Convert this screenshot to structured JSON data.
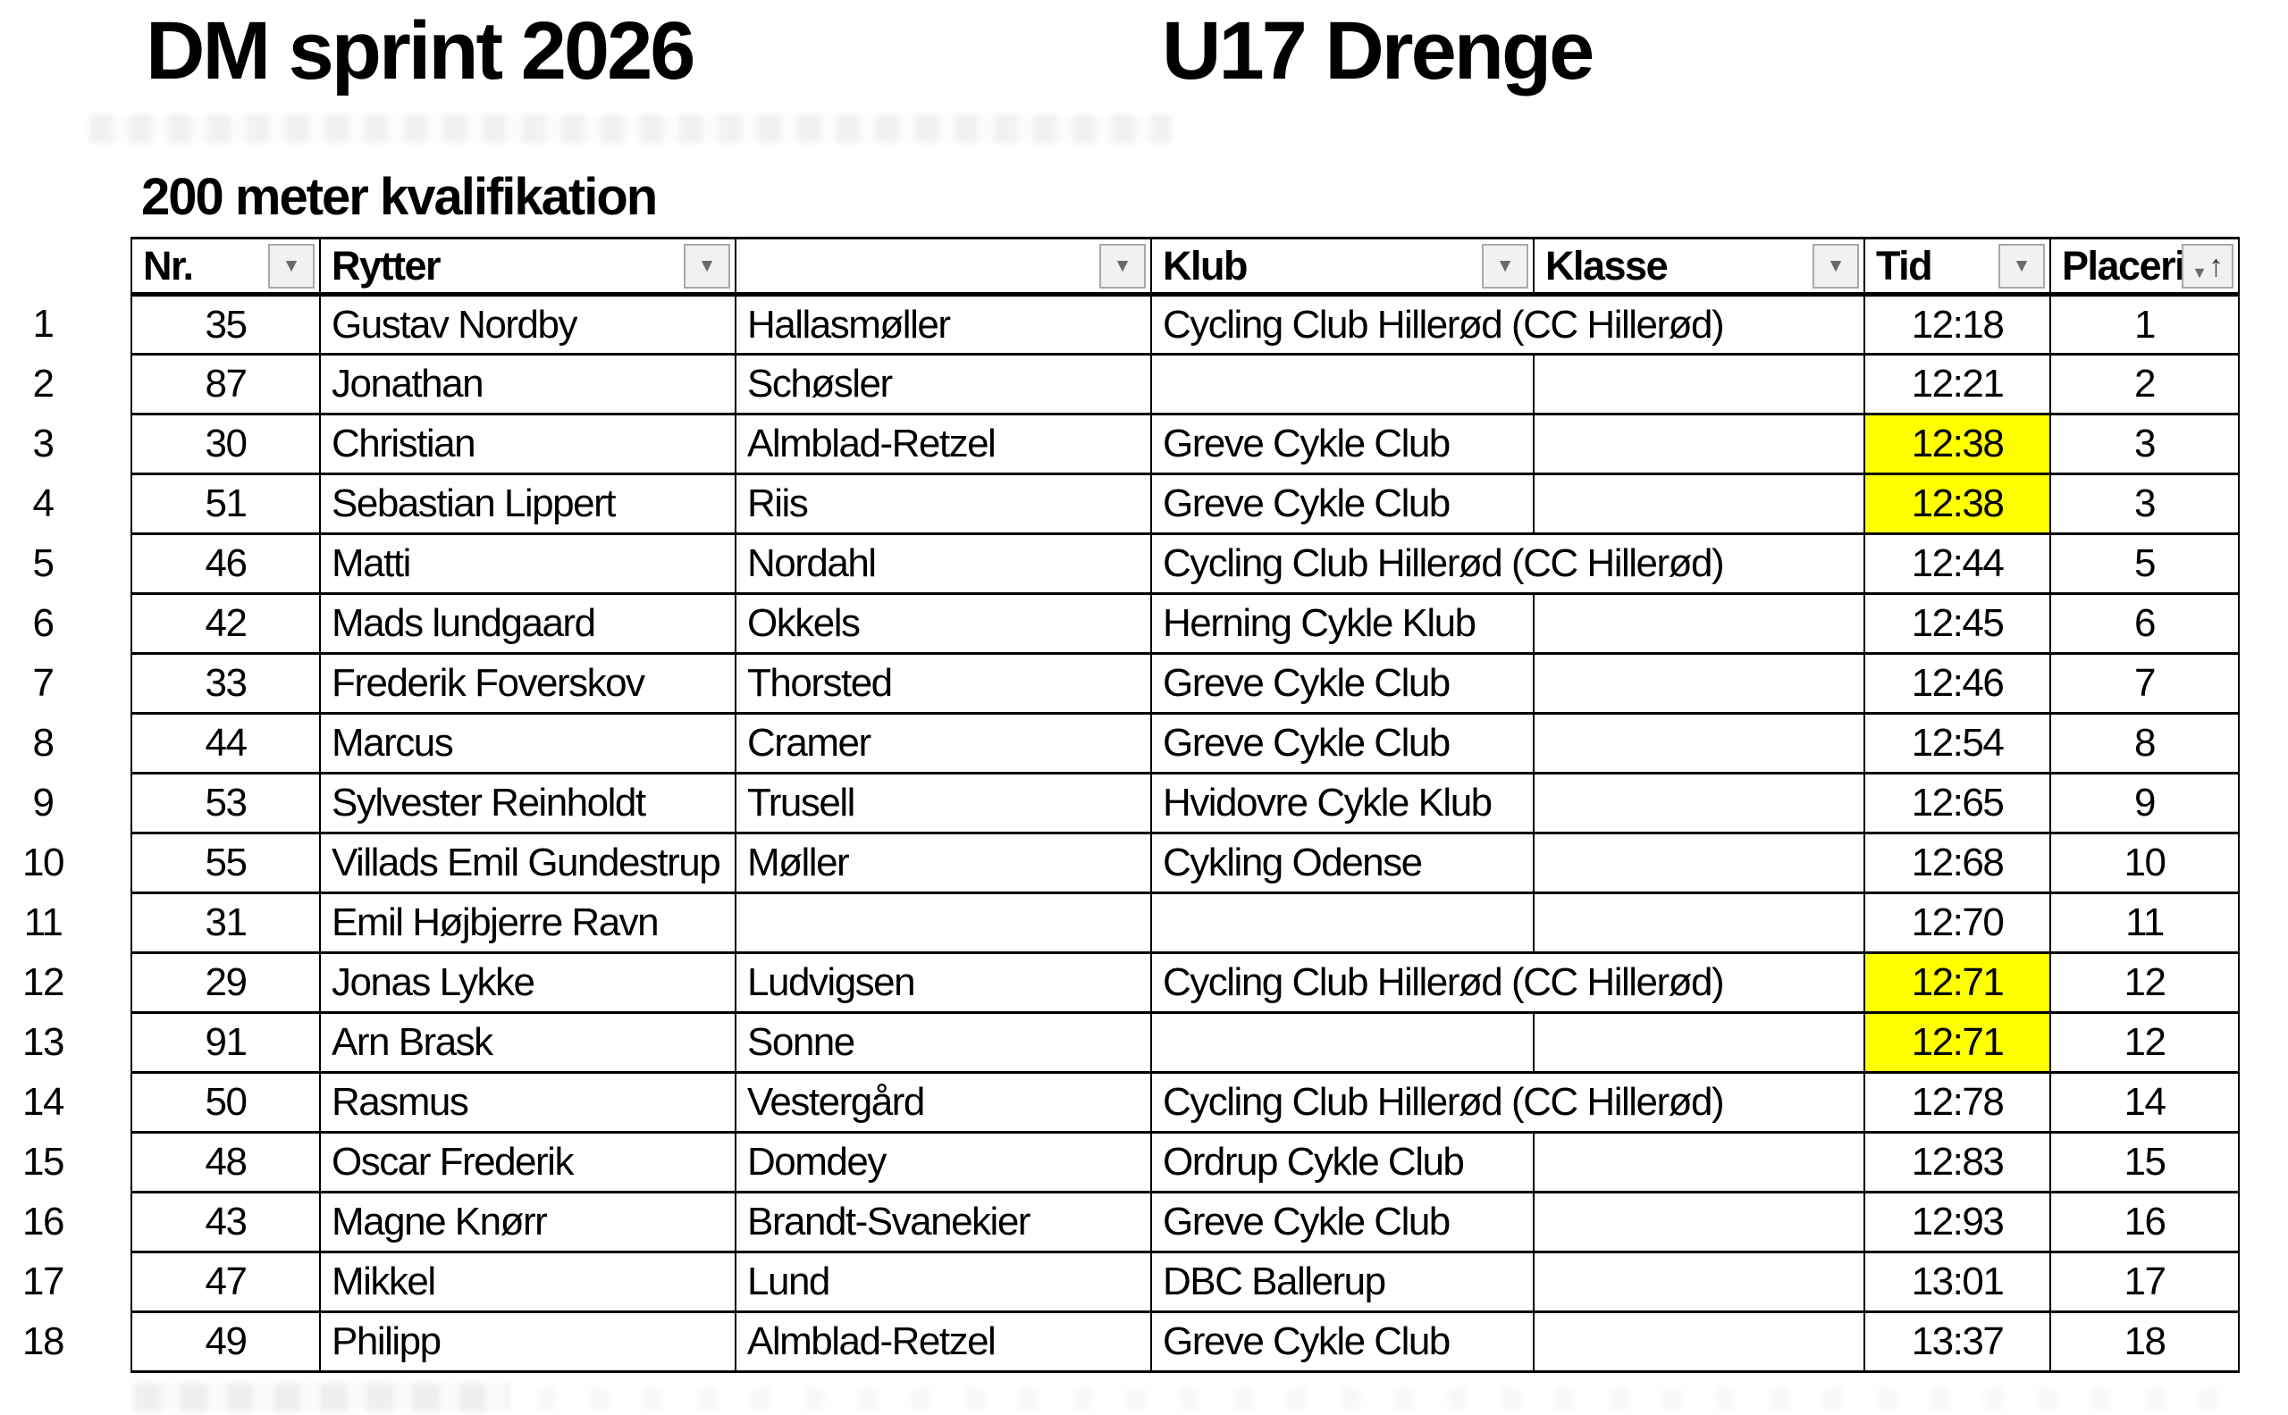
{
  "titles": {
    "event": "DM sprint 2026",
    "category": "U17 Drenge",
    "section": "200 meter kvalifikation"
  },
  "colors": {
    "highlight": "#ffff00"
  },
  "table": {
    "headers": {
      "nr": "Nr.",
      "rytter": "Rytter",
      "efternavn": "",
      "klub": "Klub",
      "klasse": "Klasse",
      "tid": "Tid",
      "placering": "Placering"
    },
    "icons": {
      "filter": "▼",
      "sort_ascending": "↑"
    },
    "sorted_column": "placering",
    "rows": [
      {
        "row": "1",
        "nr": "35",
        "fornavn": "Gustav Nordby",
        "efternavn": "Hallasmøller",
        "klub": "Cycling Club Hillerød (CC Hillerød)",
        "klasse": "",
        "tid": "12:18",
        "placering": "1",
        "tid_highlighted": false
      },
      {
        "row": "2",
        "nr": "87",
        "fornavn": "Jonathan",
        "efternavn": "Schøsler",
        "klub": "",
        "klasse": "",
        "tid": "12:21",
        "placering": "2",
        "tid_highlighted": false
      },
      {
        "row": "3",
        "nr": "30",
        "fornavn": "Christian",
        "efternavn": "Almblad-Retzel",
        "klub": "Greve Cykle Club",
        "klasse": "",
        "tid": "12:38",
        "placering": "3",
        "tid_highlighted": true
      },
      {
        "row": "4",
        "nr": "51",
        "fornavn": "Sebastian Lippert",
        "efternavn": "Riis",
        "klub": "Greve Cykle Club",
        "klasse": "",
        "tid": "12:38",
        "placering": "3",
        "tid_highlighted": true
      },
      {
        "row": "5",
        "nr": "46",
        "fornavn": "Matti",
        "efternavn": "Nordahl",
        "klub": "Cycling Club Hillerød (CC Hillerød)",
        "klasse": "",
        "tid": "12:44",
        "placering": "5",
        "tid_highlighted": false
      },
      {
        "row": "6",
        "nr": "42",
        "fornavn": "Mads lundgaard",
        "efternavn": "Okkels",
        "klub": "Herning Cykle Klub",
        "klasse": "",
        "tid": "12:45",
        "placering": "6",
        "tid_highlighted": false
      },
      {
        "row": "7",
        "nr": "33",
        "fornavn": "Frederik Foverskov",
        "efternavn": "Thorsted",
        "klub": "Greve Cykle Club",
        "klasse": "",
        "tid": "12:46",
        "placering": "7",
        "tid_highlighted": false
      },
      {
        "row": "8",
        "nr": "44",
        "fornavn": "Marcus",
        "efternavn": "Cramer",
        "klub": "Greve Cykle Club",
        "klasse": "",
        "tid": "12:54",
        "placering": "8",
        "tid_highlighted": false
      },
      {
        "row": "9",
        "nr": "53",
        "fornavn": "Sylvester Reinholdt",
        "efternavn": "Trusell",
        "klub": "Hvidovre Cykle Klub",
        "klasse": "",
        "tid": "12:65",
        "placering": "9",
        "tid_highlighted": false
      },
      {
        "row": "10",
        "nr": "55",
        "fornavn": "Villads Emil Gundestrup",
        "efternavn": "Møller",
        "klub": "Cykling Odense",
        "klasse": "",
        "tid": "12:68",
        "placering": "10",
        "tid_highlighted": false
      },
      {
        "row": "11",
        "nr": "31",
        "fornavn": "Emil Højbjerre Ravn",
        "efternavn": "",
        "klub": "",
        "klasse": "",
        "tid": "12:70",
        "placering": "11",
        "tid_highlighted": false
      },
      {
        "row": "12",
        "nr": "29",
        "fornavn": "Jonas Lykke",
        "efternavn": "Ludvigsen",
        "klub": "Cycling Club Hillerød (CC Hillerød)",
        "klasse": "",
        "tid": "12:71",
        "placering": "12",
        "tid_highlighted": true
      },
      {
        "row": "13",
        "nr": "91",
        "fornavn": "Arn Brask",
        "efternavn": "Sonne",
        "klub": "",
        "klasse": "",
        "tid": "12:71",
        "placering": "12",
        "tid_highlighted": true
      },
      {
        "row": "14",
        "nr": "50",
        "fornavn": "Rasmus",
        "efternavn": "Vestergård",
        "klub": "Cycling Club Hillerød (CC Hillerød)",
        "klasse": "",
        "tid": "12:78",
        "placering": "14",
        "tid_highlighted": false
      },
      {
        "row": "15",
        "nr": "48",
        "fornavn": "Oscar Frederik",
        "efternavn": "Domdey",
        "klub": "Ordrup Cykle Club",
        "klasse": "",
        "tid": "12:83",
        "placering": "15",
        "tid_highlighted": false
      },
      {
        "row": "16",
        "nr": "43",
        "fornavn": "Magne Knørr",
        "efternavn": "Brandt-Svanekier",
        "klub": "Greve Cykle Club",
        "klasse": "",
        "tid": "12:93",
        "placering": "16",
        "tid_highlighted": false
      },
      {
        "row": "17",
        "nr": "47",
        "fornavn": "Mikkel",
        "efternavn": "Lund",
        "klub": "DBC Ballerup",
        "klasse": "",
        "tid": "13:01",
        "placering": "17",
        "tid_highlighted": false
      },
      {
        "row": "18",
        "nr": "49",
        "fornavn": "Philipp",
        "efternavn": "Almblad-Retzel",
        "klub": "Greve Cykle Club",
        "klasse": "",
        "tid": "13:37",
        "placering": "18",
        "tid_highlighted": false
      }
    ]
  }
}
